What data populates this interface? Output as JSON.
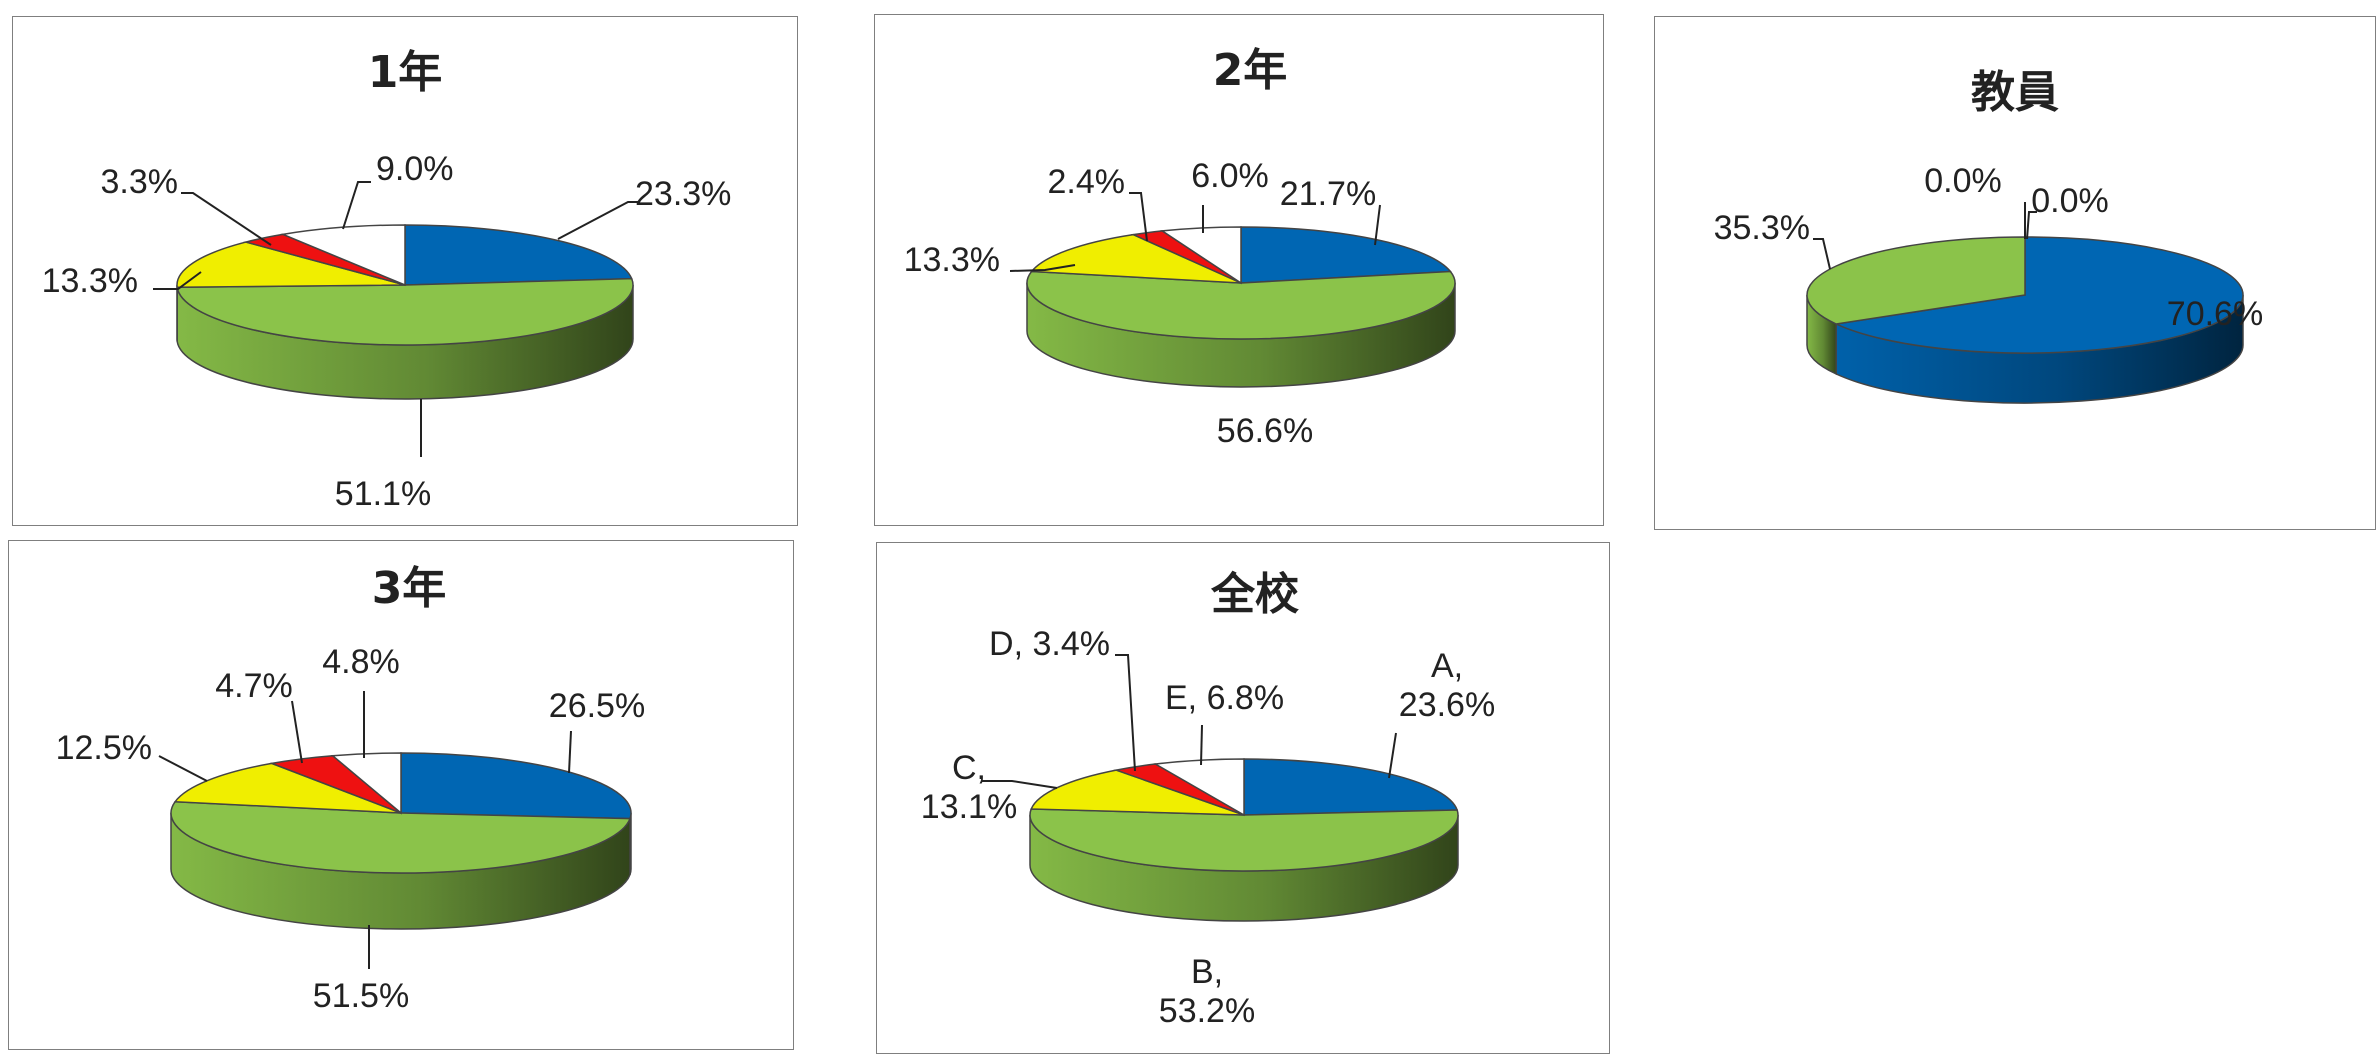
{
  "colors": {
    "A": "#0066b3",
    "B": "#8bc34a",
    "C": "#f0ee00",
    "D": "#ee1111",
    "E": "#ffffff"
  },
  "chart_data": [
    {
      "type": "pie",
      "title": "1年",
      "slices": [
        {
          "category": "A",
          "value": 23.3,
          "label": "23.3%"
        },
        {
          "category": "B",
          "value": 51.1,
          "label": "51.1%"
        },
        {
          "category": "C",
          "value": 13.3,
          "label": "13.3%"
        },
        {
          "category": "D",
          "value": 3.3,
          "label": "3.3%"
        },
        {
          "category": "E",
          "value": 9.0,
          "label": "9.0%"
        }
      ]
    },
    {
      "type": "pie",
      "title": "2年",
      "slices": [
        {
          "category": "A",
          "value": 21.7,
          "label": "21.7%"
        },
        {
          "category": "B",
          "value": 56.6,
          "label": "56.6%"
        },
        {
          "category": "C",
          "value": 13.3,
          "label": "13.3%"
        },
        {
          "category": "D",
          "value": 2.4,
          "label": "2.4%"
        },
        {
          "category": "E",
          "value": 6.0,
          "label": "6.0%"
        }
      ]
    },
    {
      "type": "pie",
      "title": "教員",
      "slices": [
        {
          "category": "A",
          "value": 70.6,
          "label": "70.6%"
        },
        {
          "category": "B",
          "value": 35.3,
          "label": "35.3%"
        },
        {
          "category": "C",
          "value": 0.0,
          "label": ""
        },
        {
          "category": "D",
          "value": 0.0,
          "label": "0.0%"
        },
        {
          "category": "E",
          "value": 0.0,
          "label": "0.0%"
        }
      ]
    },
    {
      "type": "pie",
      "title": "3年",
      "slices": [
        {
          "category": "A",
          "value": 26.5,
          "label": "26.5%"
        },
        {
          "category": "B",
          "value": 51.5,
          "label": "51.5%"
        },
        {
          "category": "C",
          "value": 12.5,
          "label": "12.5%"
        },
        {
          "category": "D",
          "value": 4.7,
          "label": "4.7%"
        },
        {
          "category": "E",
          "value": 4.8,
          "label": "4.8%"
        }
      ]
    },
    {
      "type": "pie",
      "title": "全校",
      "slices": [
        {
          "category": "A",
          "value": 23.6,
          "label": "A,\n23.6%"
        },
        {
          "category": "B",
          "value": 53.2,
          "label": "B,\n53.2%"
        },
        {
          "category": "C",
          "value": 13.1,
          "label": "C,\n13.1%"
        },
        {
          "category": "D",
          "value": 3.4,
          "label": "D, 3.4%"
        },
        {
          "category": "E",
          "value": 6.8,
          "label": "E, 6.8%"
        }
      ]
    }
  ]
}
